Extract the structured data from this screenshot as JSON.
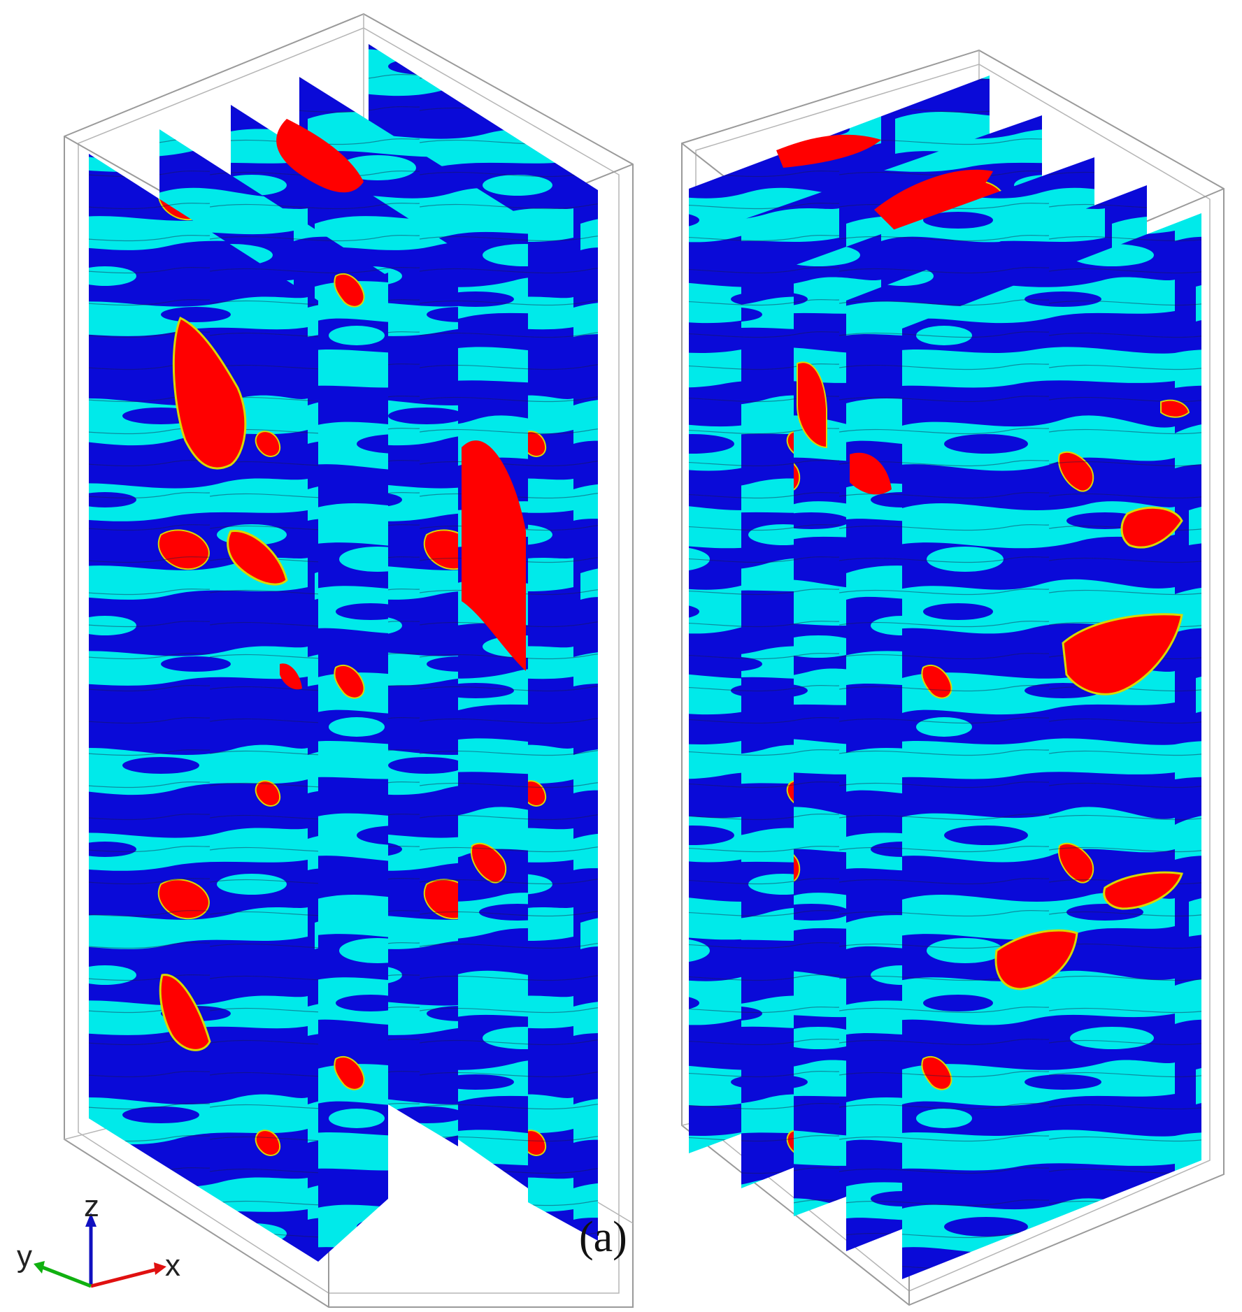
{
  "figure": {
    "panel_label": "(a)",
    "axes": {
      "x": "x",
      "y": "y",
      "z": "z"
    },
    "colors": {
      "background": "#ffffff",
      "phase_matrix": "#0a0ad8",
      "phase_interface": "#00eaea",
      "phase_particle": "#ff0000",
      "frame": "#9a9a9a",
      "axis_x": "#e01010",
      "axis_y": "#10b010",
      "axis_z": "#1010c0"
    }
  }
}
